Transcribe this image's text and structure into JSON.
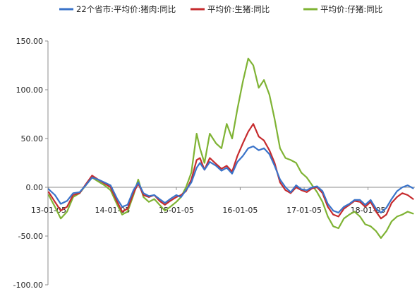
{
  "chart_data": {
    "type": "line",
    "title": "",
    "xlabel": "",
    "ylabel": "",
    "ylim": [
      -100,
      150
    ],
    "yticks": [
      150,
      100,
      50,
      0,
      -50,
      -100
    ],
    "ytick_labels": [
      "150.00",
      "100.00",
      "50.00",
      "0.00",
      "-50.00",
      "-100.00"
    ],
    "x_range": [
      "2013-01-01",
      "2018-09-30"
    ],
    "x_ticks": [
      {
        "date": "2013-01-05",
        "label": "13-01-05"
      },
      {
        "date": "2014-01-05",
        "label": "14-01-05"
      },
      {
        "date": "2015-01-05",
        "label": "15-01-05"
      },
      {
        "date": "2016-01-05",
        "label": "16-01-05"
      },
      {
        "date": "2017-01-05",
        "label": "17-01-05"
      },
      {
        "date": "2018-01-05",
        "label": "18-01-05"
      }
    ],
    "grid": false,
    "legend_position": "top",
    "series": [
      {
        "name": "22个省市:平均价:猪肉:同比",
        "color": "#3a73c9",
        "points": [
          [
            "2013-01-05",
            -2
          ],
          [
            "2013-02-10",
            -8
          ],
          [
            "2013-03-15",
            -17
          ],
          [
            "2013-04-20",
            -14
          ],
          [
            "2013-05-25",
            -6
          ],
          [
            "2013-07-01",
            -5
          ],
          [
            "2013-08-05",
            2
          ],
          [
            "2013-09-10",
            10
          ],
          [
            "2013-10-15",
            8
          ],
          [
            "2013-11-20",
            5
          ],
          [
            "2013-12-25",
            2
          ],
          [
            "2014-02-01",
            -12
          ],
          [
            "2014-03-01",
            -20
          ],
          [
            "2014-04-01",
            -18
          ],
          [
            "2014-05-05",
            -3
          ],
          [
            "2014-06-01",
            5
          ],
          [
            "2014-07-01",
            -6
          ],
          [
            "2014-08-01",
            -9
          ],
          [
            "2014-09-01",
            -8
          ],
          [
            "2014-10-01",
            -12
          ],
          [
            "2014-11-01",
            -16
          ],
          [
            "2014-12-01",
            -12
          ],
          [
            "2015-01-05",
            -8
          ],
          [
            "2015-02-01",
            -10
          ],
          [
            "2015-03-01",
            -3
          ],
          [
            "2015-04-01",
            5
          ],
          [
            "2015-05-01",
            20
          ],
          [
            "2015-05-20",
            25
          ],
          [
            "2015-06-15",
            18
          ],
          [
            "2015-07-15",
            26
          ],
          [
            "2015-08-20",
            22
          ],
          [
            "2015-09-20",
            17
          ],
          [
            "2015-10-20",
            20
          ],
          [
            "2015-11-20",
            14
          ],
          [
            "2015-12-20",
            26
          ],
          [
            "2016-01-20",
            32
          ],
          [
            "2016-02-20",
            40
          ],
          [
            "2016-03-20",
            42
          ],
          [
            "2016-04-20",
            38
          ],
          [
            "2016-05-20",
            40
          ],
          [
            "2016-06-20",
            34
          ],
          [
            "2016-07-20",
            22
          ],
          [
            "2016-08-20",
            8
          ],
          [
            "2016-09-20",
            0
          ],
          [
            "2016-10-20",
            -5
          ],
          [
            "2016-11-20",
            2
          ],
          [
            "2016-12-20",
            -2
          ],
          [
            "2017-01-20",
            -3
          ],
          [
            "2017-02-20",
            0
          ],
          [
            "2017-03-20",
            1
          ],
          [
            "2017-04-20",
            -4
          ],
          [
            "2017-05-20",
            -17
          ],
          [
            "2017-06-20",
            -24
          ],
          [
            "2017-07-20",
            -26
          ],
          [
            "2017-08-20",
            -20
          ],
          [
            "2017-09-20",
            -17
          ],
          [
            "2017-10-20",
            -13
          ],
          [
            "2017-11-20",
            -13
          ],
          [
            "2017-12-20",
            -18
          ],
          [
            "2018-01-20",
            -13
          ],
          [
            "2018-02-20",
            -22
          ],
          [
            "2018-03-20",
            -26
          ],
          [
            "2018-04-20",
            -21
          ],
          [
            "2018-05-20",
            -12
          ],
          [
            "2018-06-20",
            -4
          ],
          [
            "2018-07-20",
            0
          ],
          [
            "2018-08-20",
            2
          ],
          [
            "2018-09-20",
            -1
          ]
        ]
      },
      {
        "name": "平均价:生猪:同比",
        "color": "#c62b2e",
        "points": [
          [
            "2013-01-05",
            -5
          ],
          [
            "2013-02-10",
            -15
          ],
          [
            "2013-03-15",
            -24
          ],
          [
            "2013-04-20",
            -20
          ],
          [
            "2013-05-25",
            -8
          ],
          [
            "2013-07-01",
            -6
          ],
          [
            "2013-08-05",
            3
          ],
          [
            "2013-09-10",
            12
          ],
          [
            "2013-10-15",
            8
          ],
          [
            "2013-11-20",
            4
          ],
          [
            "2013-12-25",
            0
          ],
          [
            "2014-02-01",
            -15
          ],
          [
            "2014-03-01",
            -25
          ],
          [
            "2014-04-01",
            -22
          ],
          [
            "2014-05-05",
            -6
          ],
          [
            "2014-06-01",
            4
          ],
          [
            "2014-07-01",
            -8
          ],
          [
            "2014-08-01",
            -10
          ],
          [
            "2014-09-01",
            -8
          ],
          [
            "2014-10-01",
            -14
          ],
          [
            "2014-11-01",
            -18
          ],
          [
            "2014-12-01",
            -14
          ],
          [
            "2015-01-05",
            -10
          ],
          [
            "2015-02-01",
            -8
          ],
          [
            "2015-03-01",
            -4
          ],
          [
            "2015-04-01",
            8
          ],
          [
            "2015-05-01",
            28
          ],
          [
            "2015-05-20",
            30
          ],
          [
            "2015-06-15",
            18
          ],
          [
            "2015-07-15",
            30
          ],
          [
            "2015-08-20",
            24
          ],
          [
            "2015-09-20",
            19
          ],
          [
            "2015-10-20",
            22
          ],
          [
            "2015-11-20",
            16
          ],
          [
            "2015-12-20",
            32
          ],
          [
            "2016-01-20",
            45
          ],
          [
            "2016-02-20",
            57
          ],
          [
            "2016-03-20",
            65
          ],
          [
            "2016-04-20",
            52
          ],
          [
            "2016-05-20",
            48
          ],
          [
            "2016-06-20",
            38
          ],
          [
            "2016-07-20",
            25
          ],
          [
            "2016-08-20",
            5
          ],
          [
            "2016-09-20",
            -3
          ],
          [
            "2016-10-20",
            -6
          ],
          [
            "2016-11-20",
            0
          ],
          [
            "2016-12-20",
            -3
          ],
          [
            "2017-01-20",
            -5
          ],
          [
            "2017-02-20",
            -1
          ],
          [
            "2017-03-20",
            0
          ],
          [
            "2017-04-20",
            -6
          ],
          [
            "2017-05-20",
            -20
          ],
          [
            "2017-06-20",
            -28
          ],
          [
            "2017-07-20",
            -30
          ],
          [
            "2017-08-20",
            -22
          ],
          [
            "2017-09-20",
            -18
          ],
          [
            "2017-10-20",
            -14
          ],
          [
            "2017-11-20",
            -15
          ],
          [
            "2017-12-20",
            -20
          ],
          [
            "2018-01-20",
            -15
          ],
          [
            "2018-02-20",
            -25
          ],
          [
            "2018-03-20",
            -32
          ],
          [
            "2018-04-20",
            -28
          ],
          [
            "2018-05-20",
            -16
          ],
          [
            "2018-06-20",
            -10
          ],
          [
            "2018-07-20",
            -6
          ],
          [
            "2018-08-20",
            -8
          ],
          [
            "2018-09-20",
            -12
          ]
        ]
      },
      {
        "name": "平均价:仔猪:同比",
        "color": "#7fb334",
        "points": [
          [
            "2013-01-05",
            -8
          ],
          [
            "2013-02-10",
            -20
          ],
          [
            "2013-03-15",
            -32
          ],
          [
            "2013-04-20",
            -25
          ],
          [
            "2013-05-25",
            -10
          ],
          [
            "2013-07-01",
            -6
          ],
          [
            "2013-08-05",
            2
          ],
          [
            "2013-09-10",
            10
          ],
          [
            "2013-10-15",
            6
          ],
          [
            "2013-11-20",
            2
          ],
          [
            "2013-12-25",
            -3
          ],
          [
            "2014-02-01",
            -18
          ],
          [
            "2014-03-01",
            -28
          ],
          [
            "2014-04-01",
            -25
          ],
          [
            "2014-05-05",
            -8
          ],
          [
            "2014-06-01",
            8
          ],
          [
            "2014-07-01",
            -10
          ],
          [
            "2014-08-01",
            -15
          ],
          [
            "2014-09-01",
            -12
          ],
          [
            "2014-10-01",
            -18
          ],
          [
            "2014-11-01",
            -24
          ],
          [
            "2014-12-01",
            -20
          ],
          [
            "2015-01-05",
            -15
          ],
          [
            "2015-02-01",
            -10
          ],
          [
            "2015-03-01",
            0
          ],
          [
            "2015-04-01",
            15
          ],
          [
            "2015-05-01",
            55
          ],
          [
            "2015-05-20",
            40
          ],
          [
            "2015-06-15",
            25
          ],
          [
            "2015-07-15",
            55
          ],
          [
            "2015-08-20",
            45
          ],
          [
            "2015-09-20",
            40
          ],
          [
            "2015-10-20",
            65
          ],
          [
            "2015-11-20",
            50
          ],
          [
            "2015-12-20",
            80
          ],
          [
            "2016-01-20",
            108
          ],
          [
            "2016-02-20",
            132
          ],
          [
            "2016-03-20",
            125
          ],
          [
            "2016-04-20",
            102
          ],
          [
            "2016-05-20",
            110
          ],
          [
            "2016-06-20",
            95
          ],
          [
            "2016-07-20",
            70
          ],
          [
            "2016-08-20",
            40
          ],
          [
            "2016-09-20",
            30
          ],
          [
            "2016-10-20",
            28
          ],
          [
            "2016-11-20",
            25
          ],
          [
            "2016-12-20",
            15
          ],
          [
            "2017-01-20",
            10
          ],
          [
            "2017-02-20",
            2
          ],
          [
            "2017-03-20",
            -5
          ],
          [
            "2017-04-20",
            -15
          ],
          [
            "2017-05-20",
            -30
          ],
          [
            "2017-06-20",
            -40
          ],
          [
            "2017-07-20",
            -42
          ],
          [
            "2017-08-20",
            -32
          ],
          [
            "2017-09-20",
            -28
          ],
          [
            "2017-10-20",
            -25
          ],
          [
            "2017-11-20",
            -30
          ],
          [
            "2017-12-20",
            -38
          ],
          [
            "2018-01-20",
            -40
          ],
          [
            "2018-02-20",
            -45
          ],
          [
            "2018-03-20",
            -52
          ],
          [
            "2018-04-20",
            -45
          ],
          [
            "2018-05-20",
            -35
          ],
          [
            "2018-06-20",
            -30
          ],
          [
            "2018-07-20",
            -28
          ],
          [
            "2018-08-20",
            -25
          ],
          [
            "2018-09-20",
            -27
          ]
        ]
      }
    ]
  }
}
